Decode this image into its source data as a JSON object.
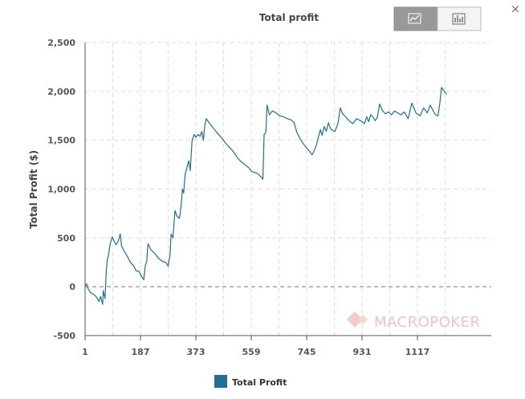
{
  "window": {
    "close_label": "×"
  },
  "toolbar": {
    "line_view_icon": "line-chart-icon",
    "bar_view_icon": "bar-chart-icon",
    "active": "line"
  },
  "watermark": {
    "text": "MACROPOKER"
  },
  "colors": {
    "series": "#1f6f96",
    "legend": "#1f6f96"
  },
  "chart_data": {
    "type": "line",
    "title": "Total profit",
    "xlabel": "",
    "ylabel": "Total Profit ($)",
    "xlim": [
      1,
      1365
    ],
    "ylim": [
      -500,
      2500
    ],
    "xticks": [
      1,
      187,
      373,
      559,
      745,
      931,
      1117
    ],
    "yticks": [
      -500,
      0,
      500,
      1000,
      1500,
      2000,
      2500
    ],
    "ytick_labels": [
      "-500",
      "0",
      "500",
      "1,000",
      "1,500",
      "2,000",
      "2,500"
    ],
    "grid": true,
    "legend_position": "bottom-left",
    "series": [
      {
        "name": "Total Profit",
        "color": "#1f6f96",
        "points": [
          [
            1,
            10
          ],
          [
            6,
            30
          ],
          [
            11,
            -20
          ],
          [
            20,
            -60
          ],
          [
            30,
            -80
          ],
          [
            38,
            -100
          ],
          [
            48,
            -150
          ],
          [
            53,
            -100
          ],
          [
            60,
            -180
          ],
          [
            62,
            -40
          ],
          [
            68,
            -120
          ],
          [
            72,
            150
          ],
          [
            75,
            270
          ],
          [
            80,
            330
          ],
          [
            85,
            440
          ],
          [
            92,
            510
          ],
          [
            98,
            470
          ],
          [
            105,
            430
          ],
          [
            113,
            470
          ],
          [
            119,
            540
          ],
          [
            123,
            420
          ],
          [
            133,
            360
          ],
          [
            143,
            310
          ],
          [
            153,
            250
          ],
          [
            163,
            220
          ],
          [
            173,
            160
          ],
          [
            182,
            160
          ],
          [
            190,
            110
          ],
          [
            198,
            70
          ],
          [
            203,
            210
          ],
          [
            208,
            260
          ],
          [
            212,
            440
          ],
          [
            222,
            380
          ],
          [
            235,
            340
          ],
          [
            248,
            290
          ],
          [
            260,
            260
          ],
          [
            272,
            250
          ],
          [
            280,
            210
          ],
          [
            286,
            320
          ],
          [
            290,
            540
          ],
          [
            296,
            500
          ],
          [
            303,
            780
          ],
          [
            310,
            720
          ],
          [
            318,
            700
          ],
          [
            323,
            820
          ],
          [
            328,
            1000
          ],
          [
            332,
            960
          ],
          [
            337,
            1150
          ],
          [
            343,
            1220
          ],
          [
            349,
            1290
          ],
          [
            354,
            1190
          ],
          [
            360,
            1490
          ],
          [
            367,
            1560
          ],
          [
            373,
            1530
          ],
          [
            380,
            1560
          ],
          [
            387,
            1540
          ],
          [
            393,
            1590
          ],
          [
            398,
            1500
          ],
          [
            403,
            1650
          ],
          [
            408,
            1720
          ],
          [
            415,
            1690
          ],
          [
            422,
            1660
          ],
          [
            428,
            1640
          ],
          [
            440,
            1590
          ],
          [
            455,
            1540
          ],
          [
            470,
            1480
          ],
          [
            485,
            1430
          ],
          [
            500,
            1380
          ],
          [
            515,
            1310
          ],
          [
            525,
            1280
          ],
          [
            538,
            1250
          ],
          [
            550,
            1220
          ],
          [
            560,
            1180
          ],
          [
            570,
            1170
          ],
          [
            580,
            1160
          ],
          [
            590,
            1130
          ],
          [
            598,
            1100
          ],
          [
            602,
            1560
          ],
          [
            608,
            1580
          ],
          [
            612,
            1860
          ],
          [
            620,
            1760
          ],
          [
            630,
            1800
          ],
          [
            642,
            1780
          ],
          [
            655,
            1750
          ],
          [
            668,
            1740
          ],
          [
            681,
            1720
          ],
          [
            692,
            1710
          ],
          [
            703,
            1680
          ],
          [
            712,
            1580
          ],
          [
            722,
            1520
          ],
          [
            732,
            1470
          ],
          [
            740,
            1440
          ],
          [
            748,
            1410
          ],
          [
            756,
            1380
          ],
          [
            763,
            1350
          ],
          [
            770,
            1390
          ],
          [
            778,
            1450
          ],
          [
            784,
            1530
          ],
          [
            791,
            1610
          ],
          [
            797,
            1550
          ],
          [
            804,
            1640
          ],
          [
            811,
            1590
          ],
          [
            818,
            1680
          ],
          [
            825,
            1620
          ],
          [
            832,
            1600
          ],
          [
            840,
            1590
          ],
          [
            850,
            1670
          ],
          [
            858,
            1830
          ],
          [
            866,
            1770
          ],
          [
            876,
            1740
          ],
          [
            887,
            1700
          ],
          [
            900,
            1670
          ],
          [
            913,
            1720
          ],
          [
            926,
            1700
          ],
          [
            939,
            1670
          ],
          [
            947,
            1740
          ],
          [
            953,
            1690
          ],
          [
            960,
            1760
          ],
          [
            967,
            1740
          ],
          [
            975,
            1700
          ],
          [
            982,
            1730
          ],
          [
            990,
            1870
          ],
          [
            1000,
            1800
          ],
          [
            1010,
            1770
          ],
          [
            1020,
            1790
          ],
          [
            1030,
            1760
          ],
          [
            1040,
            1800
          ],
          [
            1051,
            1780
          ],
          [
            1061,
            1760
          ],
          [
            1073,
            1790
          ],
          [
            1086,
            1720
          ],
          [
            1098,
            1880
          ],
          [
            1112,
            1780
          ],
          [
            1126,
            1750
          ],
          [
            1138,
            1830
          ],
          [
            1150,
            1780
          ],
          [
            1160,
            1860
          ],
          [
            1170,
            1800
          ],
          [
            1178,
            1760
          ],
          [
            1186,
            1750
          ],
          [
            1192,
            1870
          ],
          [
            1198,
            2040
          ],
          [
            1205,
            2010
          ],
          [
            1215,
            1970
          ]
        ]
      }
    ]
  }
}
